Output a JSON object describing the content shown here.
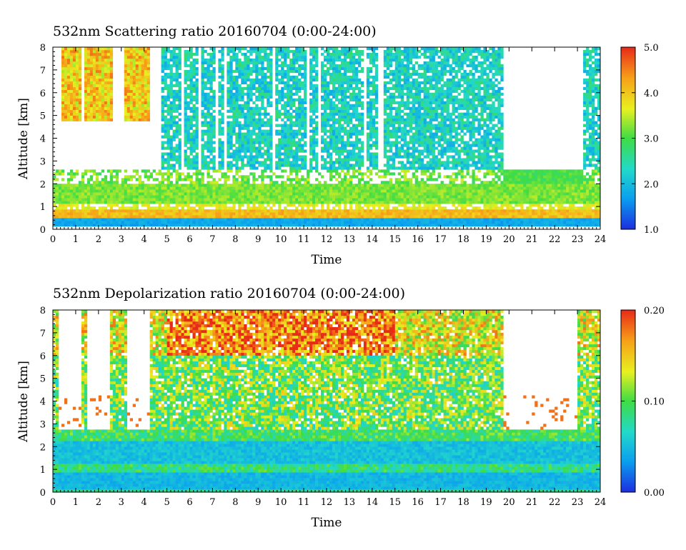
{
  "chart_data": [
    {
      "type": "heatmap",
      "title": "532nm Scattering ratio  20160704 (0:00-24:00)",
      "xlabel": "Time",
      "ylabel": "Altitude [km]",
      "xlim": [
        0,
        24
      ],
      "ylim": [
        0,
        8
      ],
      "x_ticks": [
        "0",
        "1",
        "2",
        "3",
        "4",
        "5",
        "6",
        "7",
        "8",
        "9",
        "10",
        "11",
        "12",
        "13",
        "14",
        "15",
        "16",
        "17",
        "18",
        "19",
        "20",
        "21",
        "22",
        "23",
        "24"
      ],
      "y_ticks": [
        "0",
        "1",
        "2",
        "3",
        "4",
        "5",
        "6",
        "7",
        "8"
      ],
      "colorbar": {
        "range": [
          1.0,
          5.0
        ],
        "tick_labels": [
          "1.0",
          "2.0",
          "3.0",
          "4.0",
          "5.0"
        ],
        "colors": [
          "#1c2ee0",
          "#0aa0ef",
          "#22d9c8",
          "#3fdc45",
          "#e8f020",
          "#f7a018",
          "#e82a18"
        ]
      },
      "features": {
        "near_surface_layer_km": [
          0.2,
          0.4
        ],
        "boundary_layer_top_km": 1.0,
        "cloud_layer_km": [
          2.0,
          2.6
        ],
        "upper_clouds_time_h": [
          [
            0.3,
            1.2
          ],
          [
            1.4,
            2.6
          ],
          [
            3.1,
            4.3
          ]
        ],
        "no_data_time_h": [
          [
            19.7,
            23.2
          ]
        ]
      }
    },
    {
      "type": "heatmap",
      "title": "532nm Depolarization ratio  20160704 (0:00-24:00)",
      "xlabel": "Time",
      "ylabel": "Altitude [km]",
      "xlim": [
        0,
        24
      ],
      "ylim": [
        0,
        8
      ],
      "x_ticks": [
        "0",
        "1",
        "2",
        "3",
        "4",
        "5",
        "6",
        "7",
        "8",
        "9",
        "10",
        "11",
        "12",
        "13",
        "14",
        "15",
        "16",
        "17",
        "18",
        "19",
        "20",
        "21",
        "22",
        "23",
        "24"
      ],
      "y_ticks": [
        "0",
        "1",
        "2",
        "3",
        "4",
        "5",
        "6",
        "7",
        "8"
      ],
      "colorbar": {
        "range": [
          0.0,
          0.2
        ],
        "tick_labels": [
          "0.00",
          "0.10",
          "0.20"
        ],
        "colors": [
          "#1c2ee0",
          "#0aa0ef",
          "#22d9c8",
          "#3fdc45",
          "#e8f020",
          "#f7a018",
          "#e82a18"
        ]
      },
      "features": {
        "near_surface_layer_km": [
          0.0,
          0.2
        ],
        "boundary_layer_top_km": 2.3,
        "no_data_time_h": [
          [
            0.3,
            1.2
          ],
          [
            1.5,
            2.5
          ],
          [
            3.2,
            4.3
          ],
          [
            19.7,
            23.0
          ]
        ]
      }
    }
  ]
}
